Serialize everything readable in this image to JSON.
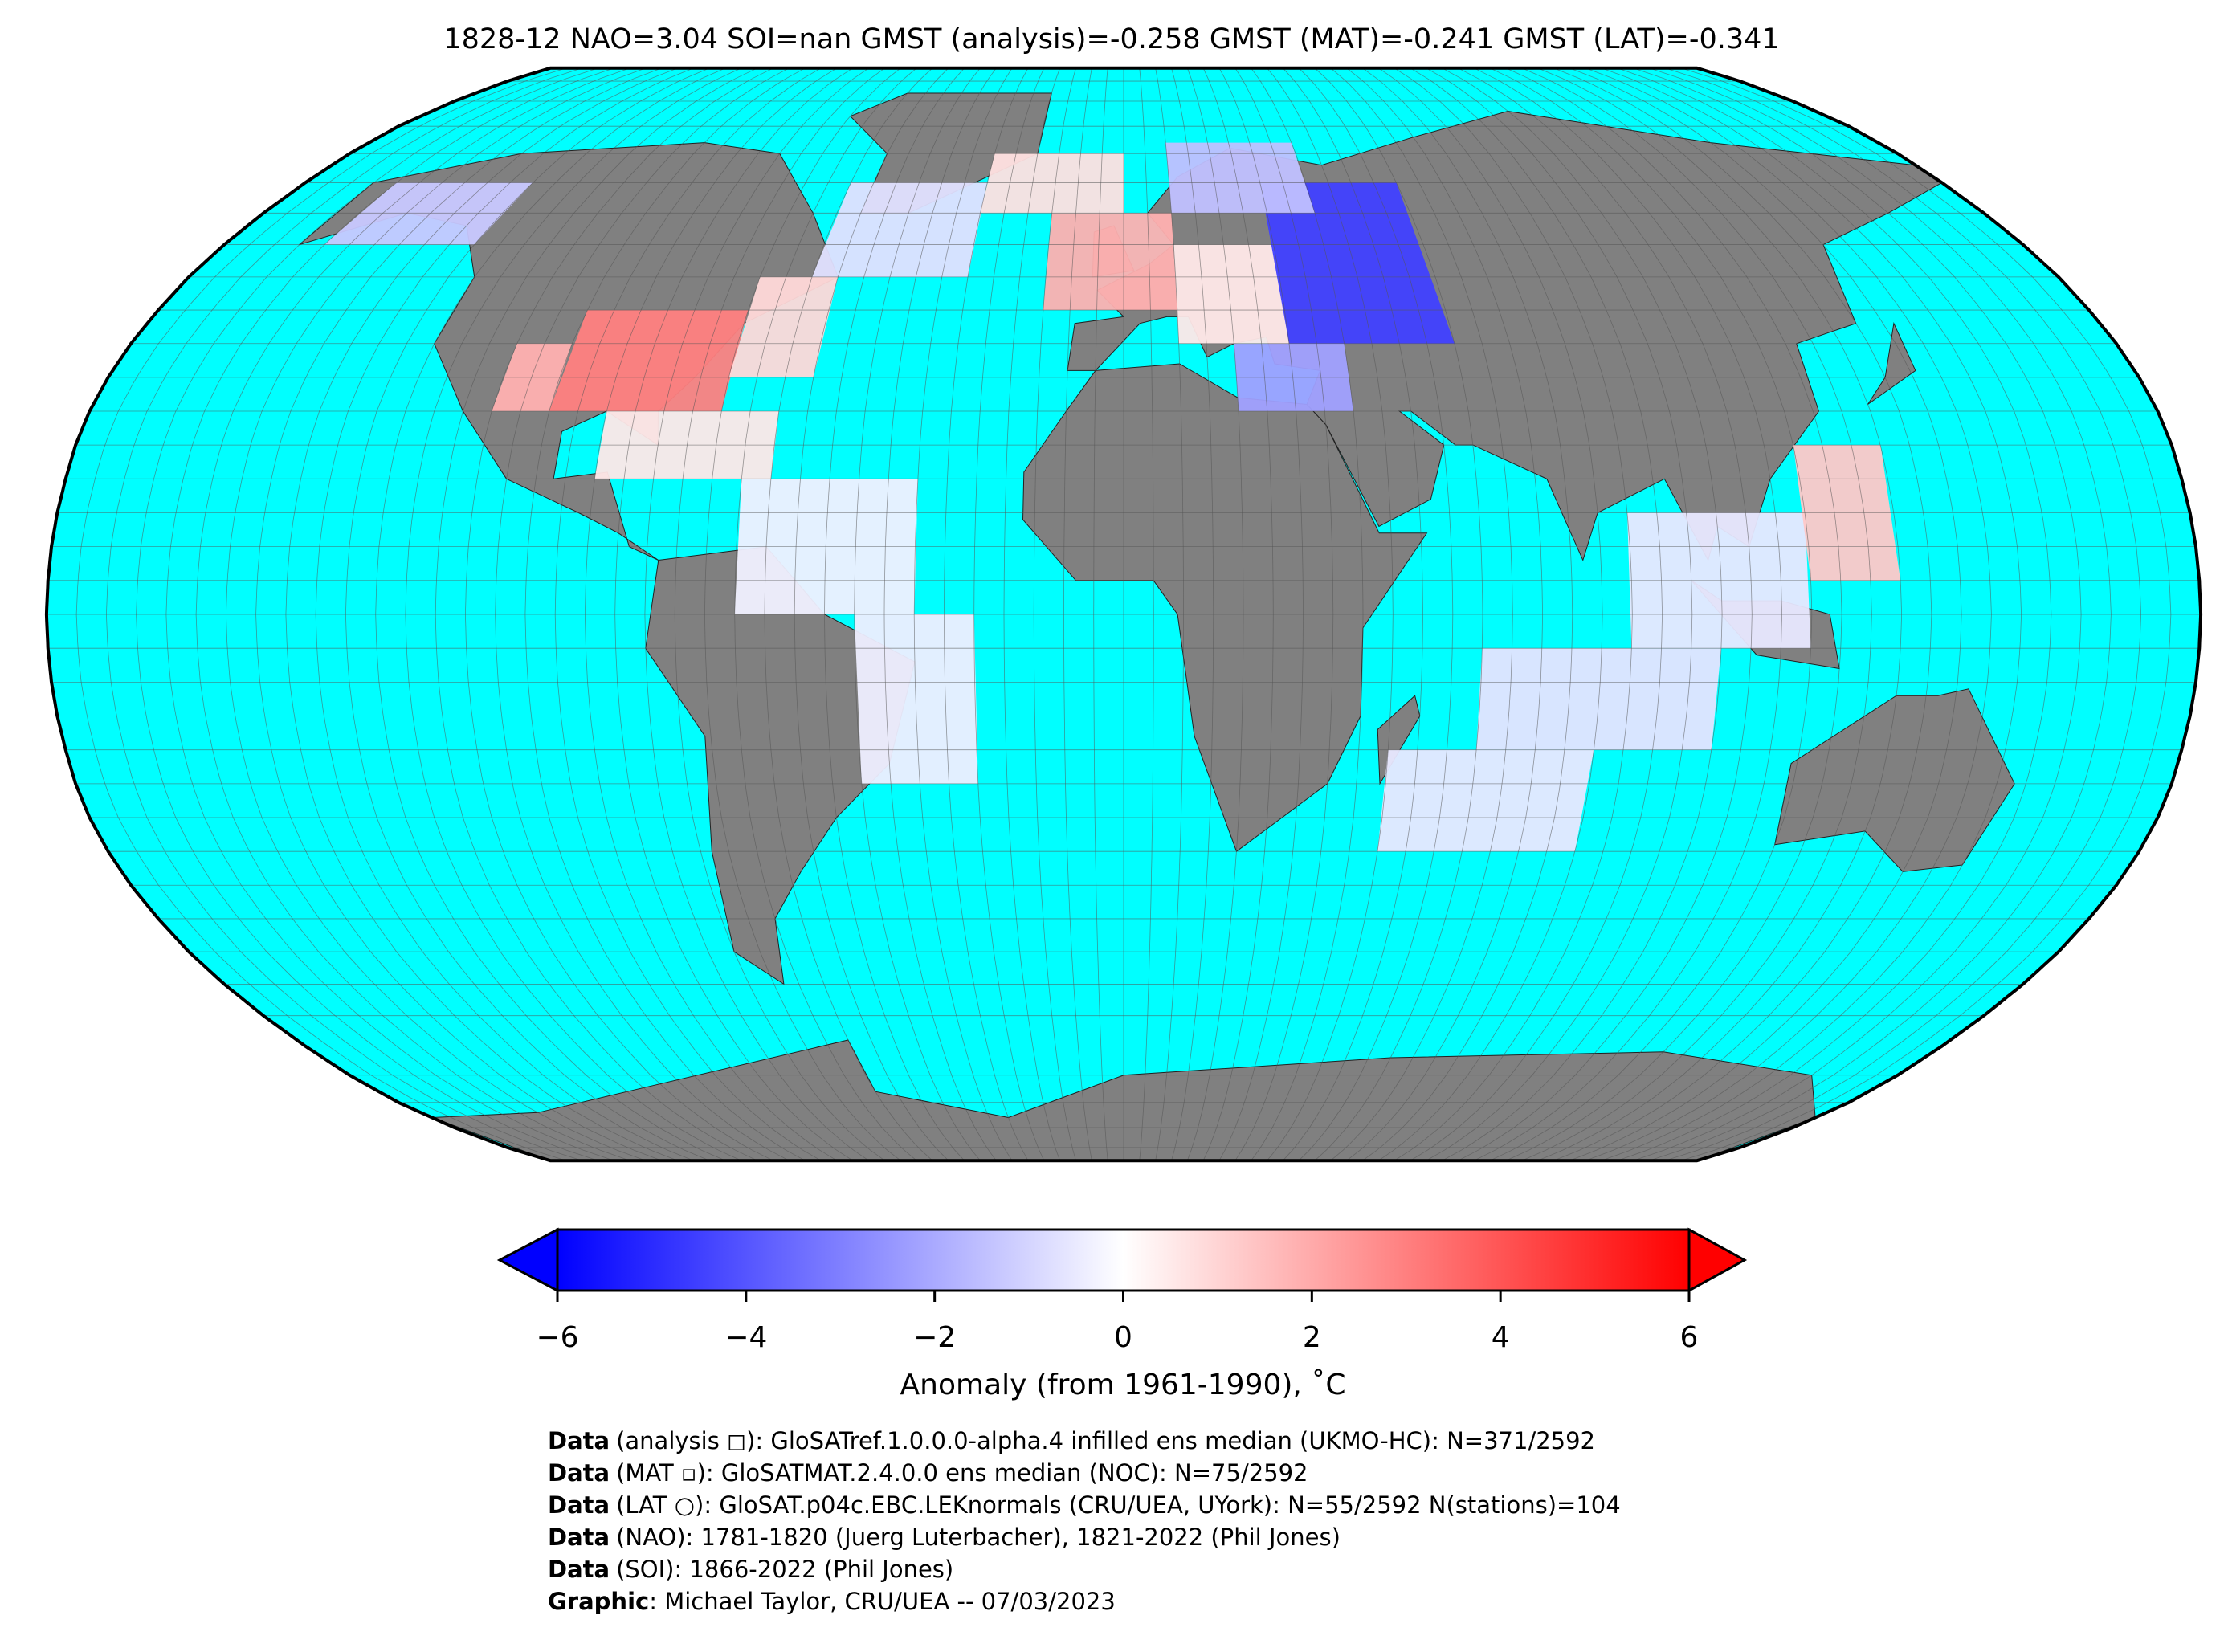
{
  "title": "1828-12 NAO=3.04 SOI=nan GMST (analysis)=-0.258 GMST (MAT)=-0.241 GMST (LAT)=-0.341",
  "colorbar": {
    "label": "Anomaly (from 1961-1990), ˚C",
    "lim": [
      -6,
      6
    ],
    "ticks": [
      {
        "value": -6,
        "label": "−6"
      },
      {
        "value": -4,
        "label": "−4"
      },
      {
        "value": -2,
        "label": "−2"
      },
      0,
      2,
      4,
      6
    ],
    "colors": [
      "#0000ff",
      "#ffffff",
      "#ff0000"
    ]
  },
  "credits": [
    {
      "bold": "Data",
      "text": "(analysis ◻): GloSATref.1.0.0.0-alpha.4 infilled ens median (UKMO-HC): N=371/2592"
    },
    {
      "bold": "Data",
      "text": "(MAT ▫): GloSATMAT.2.4.0.0 ens median (NOC): N=75/2592"
    },
    {
      "bold": "Data",
      "text": "(LAT ○): GloSAT.p04c.EBC.LEKnormals (CRU/UEA, UYork): N=55/2592 N(stations)=104"
    },
    {
      "bold": "Data",
      "text": "(NAO): 1781-1820 (Juerg Luterbacher), 1821-2022 (Phil Jones)"
    },
    {
      "bold": "Data",
      "text": "(SOI): 1866-2022 (Phil Jones)"
    },
    {
      "bold": "Graphic",
      "text": ": Michael Taylor, CRU/UEA -- 07/03/2023"
    }
  ]
}
